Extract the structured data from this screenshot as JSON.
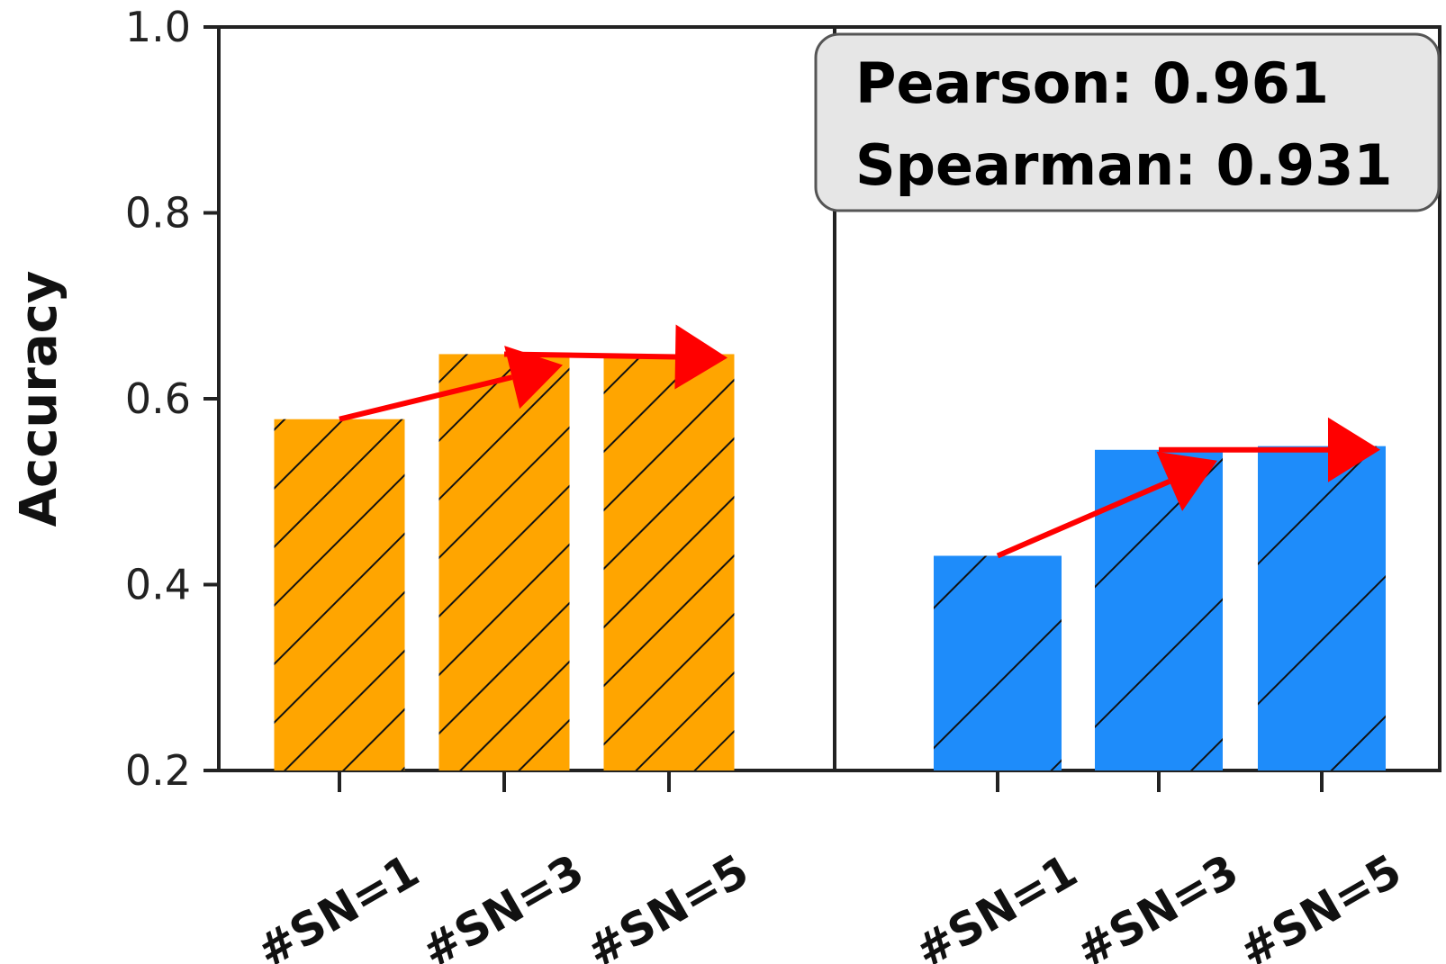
{
  "chart_data": {
    "type": "bar",
    "ylabel": "Accuracy",
    "ylim": [
      0.2,
      1.0
    ],
    "yticks": [
      "0.2",
      "0.4",
      "0.6",
      "0.8",
      "1.0"
    ],
    "grid": false,
    "panels": [
      {
        "categories": [
          "#SN=1",
          "#SN=3",
          "#SN=5"
        ],
        "values": [
          0.578,
          0.648,
          0.648
        ],
        "color": "#FFA500",
        "hatch": "dense-diagonal"
      },
      {
        "categories": [
          "#SN=1",
          "#SN=3",
          "#SN=5"
        ],
        "values": [
          0.431,
          0.545,
          0.549
        ],
        "color": "#1E8CFA",
        "hatch": "sparse-diagonal"
      }
    ],
    "trend_arrow_color": "#FF0000",
    "annotation": {
      "pearson": "Pearson: 0.961",
      "spearman": "Spearman: 0.931",
      "background": "#E6E6E6"
    }
  }
}
